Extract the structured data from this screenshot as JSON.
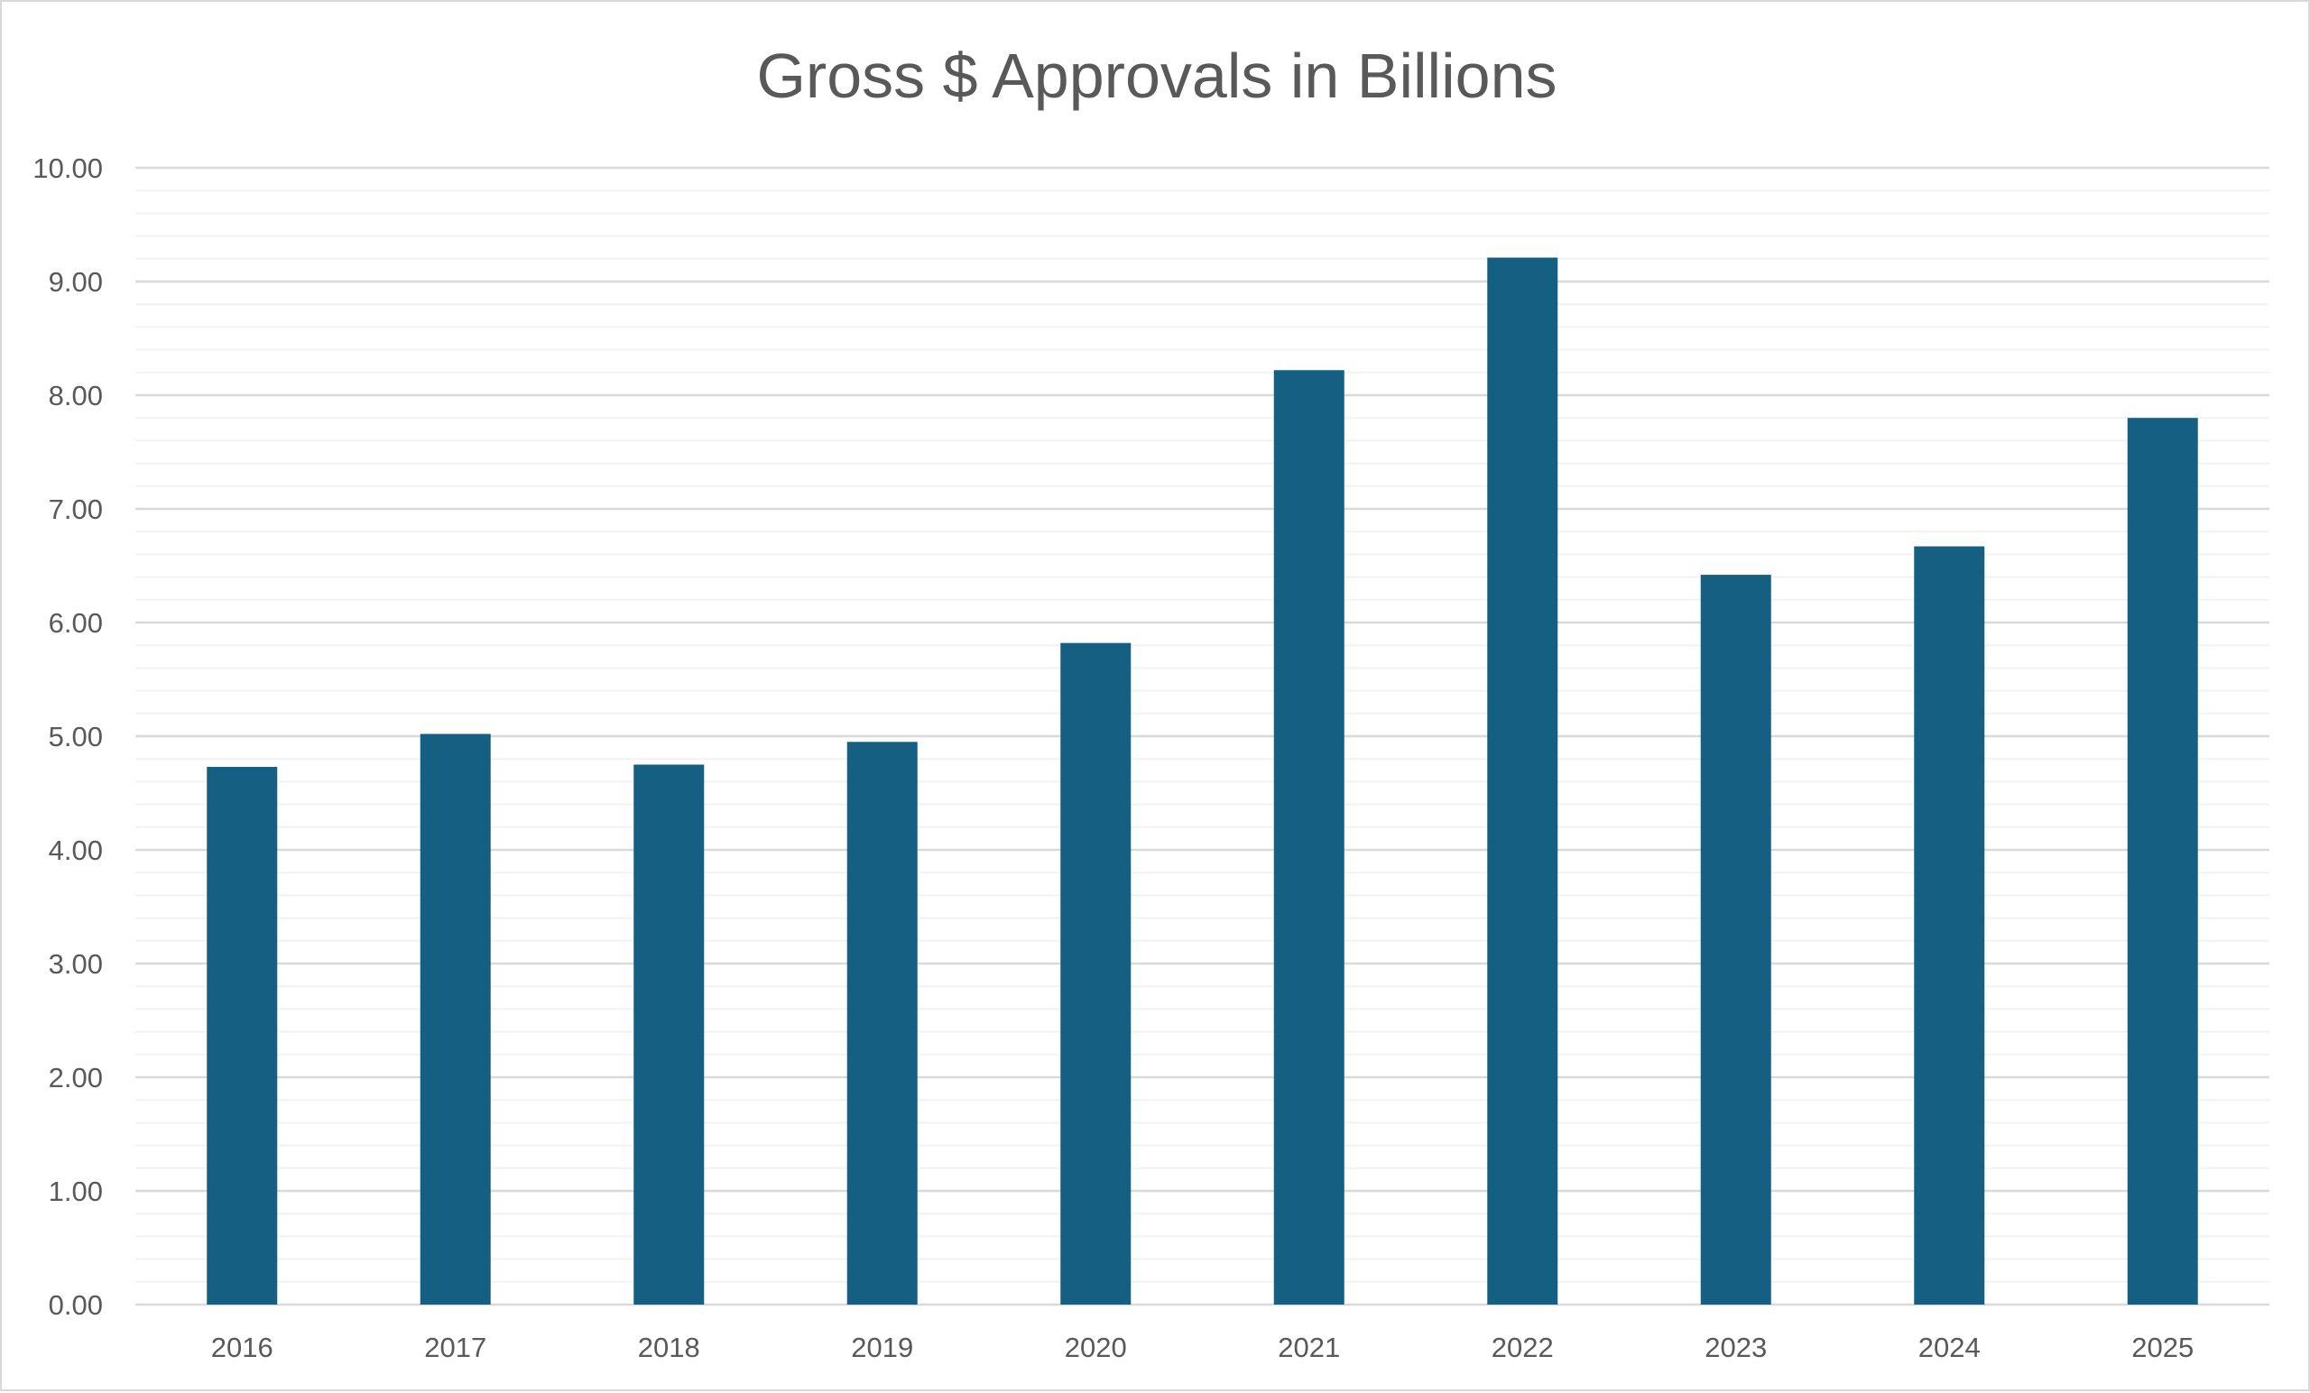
{
  "chart_data": {
    "type": "bar",
    "title": "Gross $ Approvals in Billions",
    "xlabel": "",
    "ylabel": "",
    "categories": [
      "2016",
      "2017",
      "2018",
      "2019",
      "2020",
      "2021",
      "2022",
      "2023",
      "2024",
      "2025"
    ],
    "values": [
      4.73,
      5.02,
      4.75,
      4.95,
      5.82,
      8.22,
      9.21,
      6.42,
      6.67,
      7.8
    ],
    "ylim": [
      0,
      10
    ],
    "y_ticks": [
      "0.00",
      "1.00",
      "2.00",
      "3.00",
      "4.00",
      "5.00",
      "6.00",
      "7.00",
      "8.00",
      "9.00",
      "10.00"
    ],
    "major_gridlines": true,
    "minor_gridlines": true,
    "legend": "none",
    "bar_color": "#156082"
  }
}
